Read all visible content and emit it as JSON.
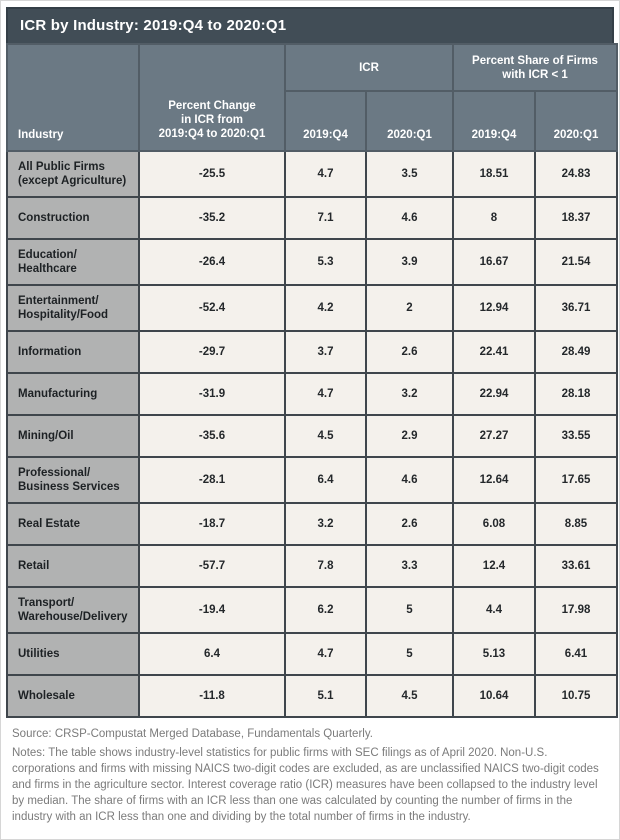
{
  "title": "ICR by Industry: 2019:Q4 to 2020:Q1",
  "table": {
    "headers": {
      "industry": "Industry",
      "pct_change": "Percent Change\nin ICR from\n2019:Q4 to 2020:Q1",
      "group_icr": "ICR",
      "group_share": "Percent Share of Firms\nwith ICR < 1",
      "sub": [
        "2019:Q4",
        "2020:Q1",
        "2019:Q4",
        "2020:Q1"
      ]
    },
    "rows": [
      {
        "industry": "All Public Firms\n(except Agriculture)",
        "pct_change": "-25.5",
        "icr_2019q4": "4.7",
        "icr_2020q1": "3.5",
        "share_2019q4": "18.51",
        "share_2020q1": "24.83",
        "two_line": true
      },
      {
        "industry": "Construction",
        "pct_change": "-35.2",
        "icr_2019q4": "7.1",
        "icr_2020q1": "4.6",
        "share_2019q4": "8",
        "share_2020q1": "18.37",
        "two_line": false
      },
      {
        "industry": "Education/\nHealthcare",
        "pct_change": "-26.4",
        "icr_2019q4": "5.3",
        "icr_2020q1": "3.9",
        "share_2019q4": "16.67",
        "share_2020q1": "21.54",
        "two_line": true
      },
      {
        "industry": "Entertainment/\nHospitality/Food",
        "pct_change": "-52.4",
        "icr_2019q4": "4.2",
        "icr_2020q1": "2",
        "share_2019q4": "12.94",
        "share_2020q1": "36.71",
        "two_line": true
      },
      {
        "industry": "Information",
        "pct_change": "-29.7",
        "icr_2019q4": "3.7",
        "icr_2020q1": "2.6",
        "share_2019q4": "22.41",
        "share_2020q1": "28.49",
        "two_line": false
      },
      {
        "industry": "Manufacturing",
        "pct_change": "-31.9",
        "icr_2019q4": "4.7",
        "icr_2020q1": "3.2",
        "share_2019q4": "22.94",
        "share_2020q1": "28.18",
        "two_line": false
      },
      {
        "industry": "Mining/Oil",
        "pct_change": "-35.6",
        "icr_2019q4": "4.5",
        "icr_2020q1": "2.9",
        "share_2019q4": "27.27",
        "share_2020q1": "33.55",
        "two_line": false
      },
      {
        "industry": "Professional/\nBusiness Services",
        "pct_change": "-28.1",
        "icr_2019q4": "6.4",
        "icr_2020q1": "4.6",
        "share_2019q4": "12.64",
        "share_2020q1": "17.65",
        "two_line": true
      },
      {
        "industry": "Real Estate",
        "pct_change": "-18.7",
        "icr_2019q4": "3.2",
        "icr_2020q1": "2.6",
        "share_2019q4": "6.08",
        "share_2020q1": "8.85",
        "two_line": false
      },
      {
        "industry": "Retail",
        "pct_change": "-57.7",
        "icr_2019q4": "7.8",
        "icr_2020q1": "3.3",
        "share_2019q4": "12.4",
        "share_2020q1": "33.61",
        "two_line": false
      },
      {
        "industry": "Transport/\nWarehouse/Delivery",
        "pct_change": "-19.4",
        "icr_2019q4": "6.2",
        "icr_2020q1": "5",
        "share_2019q4": "4.4",
        "share_2020q1": "17.98",
        "two_line": true
      },
      {
        "industry": "Utilities",
        "pct_change": "6.4",
        "icr_2019q4": "4.7",
        "icr_2020q1": "5",
        "share_2019q4": "5.13",
        "share_2020q1": "6.41",
        "two_line": false
      },
      {
        "industry": "Wholesale",
        "pct_change": "-11.8",
        "icr_2019q4": "5.1",
        "icr_2020q1": "4.5",
        "share_2019q4": "10.64",
        "share_2020q1": "10.75",
        "two_line": false
      }
    ]
  },
  "footer": {
    "source": "Source: CRSP-Compustat Merged Database, Fundamentals Quarterly.",
    "notes": "Notes: The table shows industry-level statistics for public firms with SEC filings as of April 2020. Non-U.S. corporations and firms with missing NAICS two-digit codes are excluded, as are unclassified NAICS two-digit codes and firms in the agriculture sector. Interest coverage ratio (ICR) measures have been collapsed to the industry level by median. The share of firms with an ICR less than one was calculated by counting the number of firms in the industry with an ICR less than one and dividing by the total number of firms in the industry."
  },
  "colors": {
    "title_bar": "#414d56",
    "header_cell": "#6b7984",
    "industry_cell": "#b1b2b2",
    "data_cell": "#f4f1ec",
    "border": "#3f464c",
    "footer_text": "#7b7b7b"
  }
}
